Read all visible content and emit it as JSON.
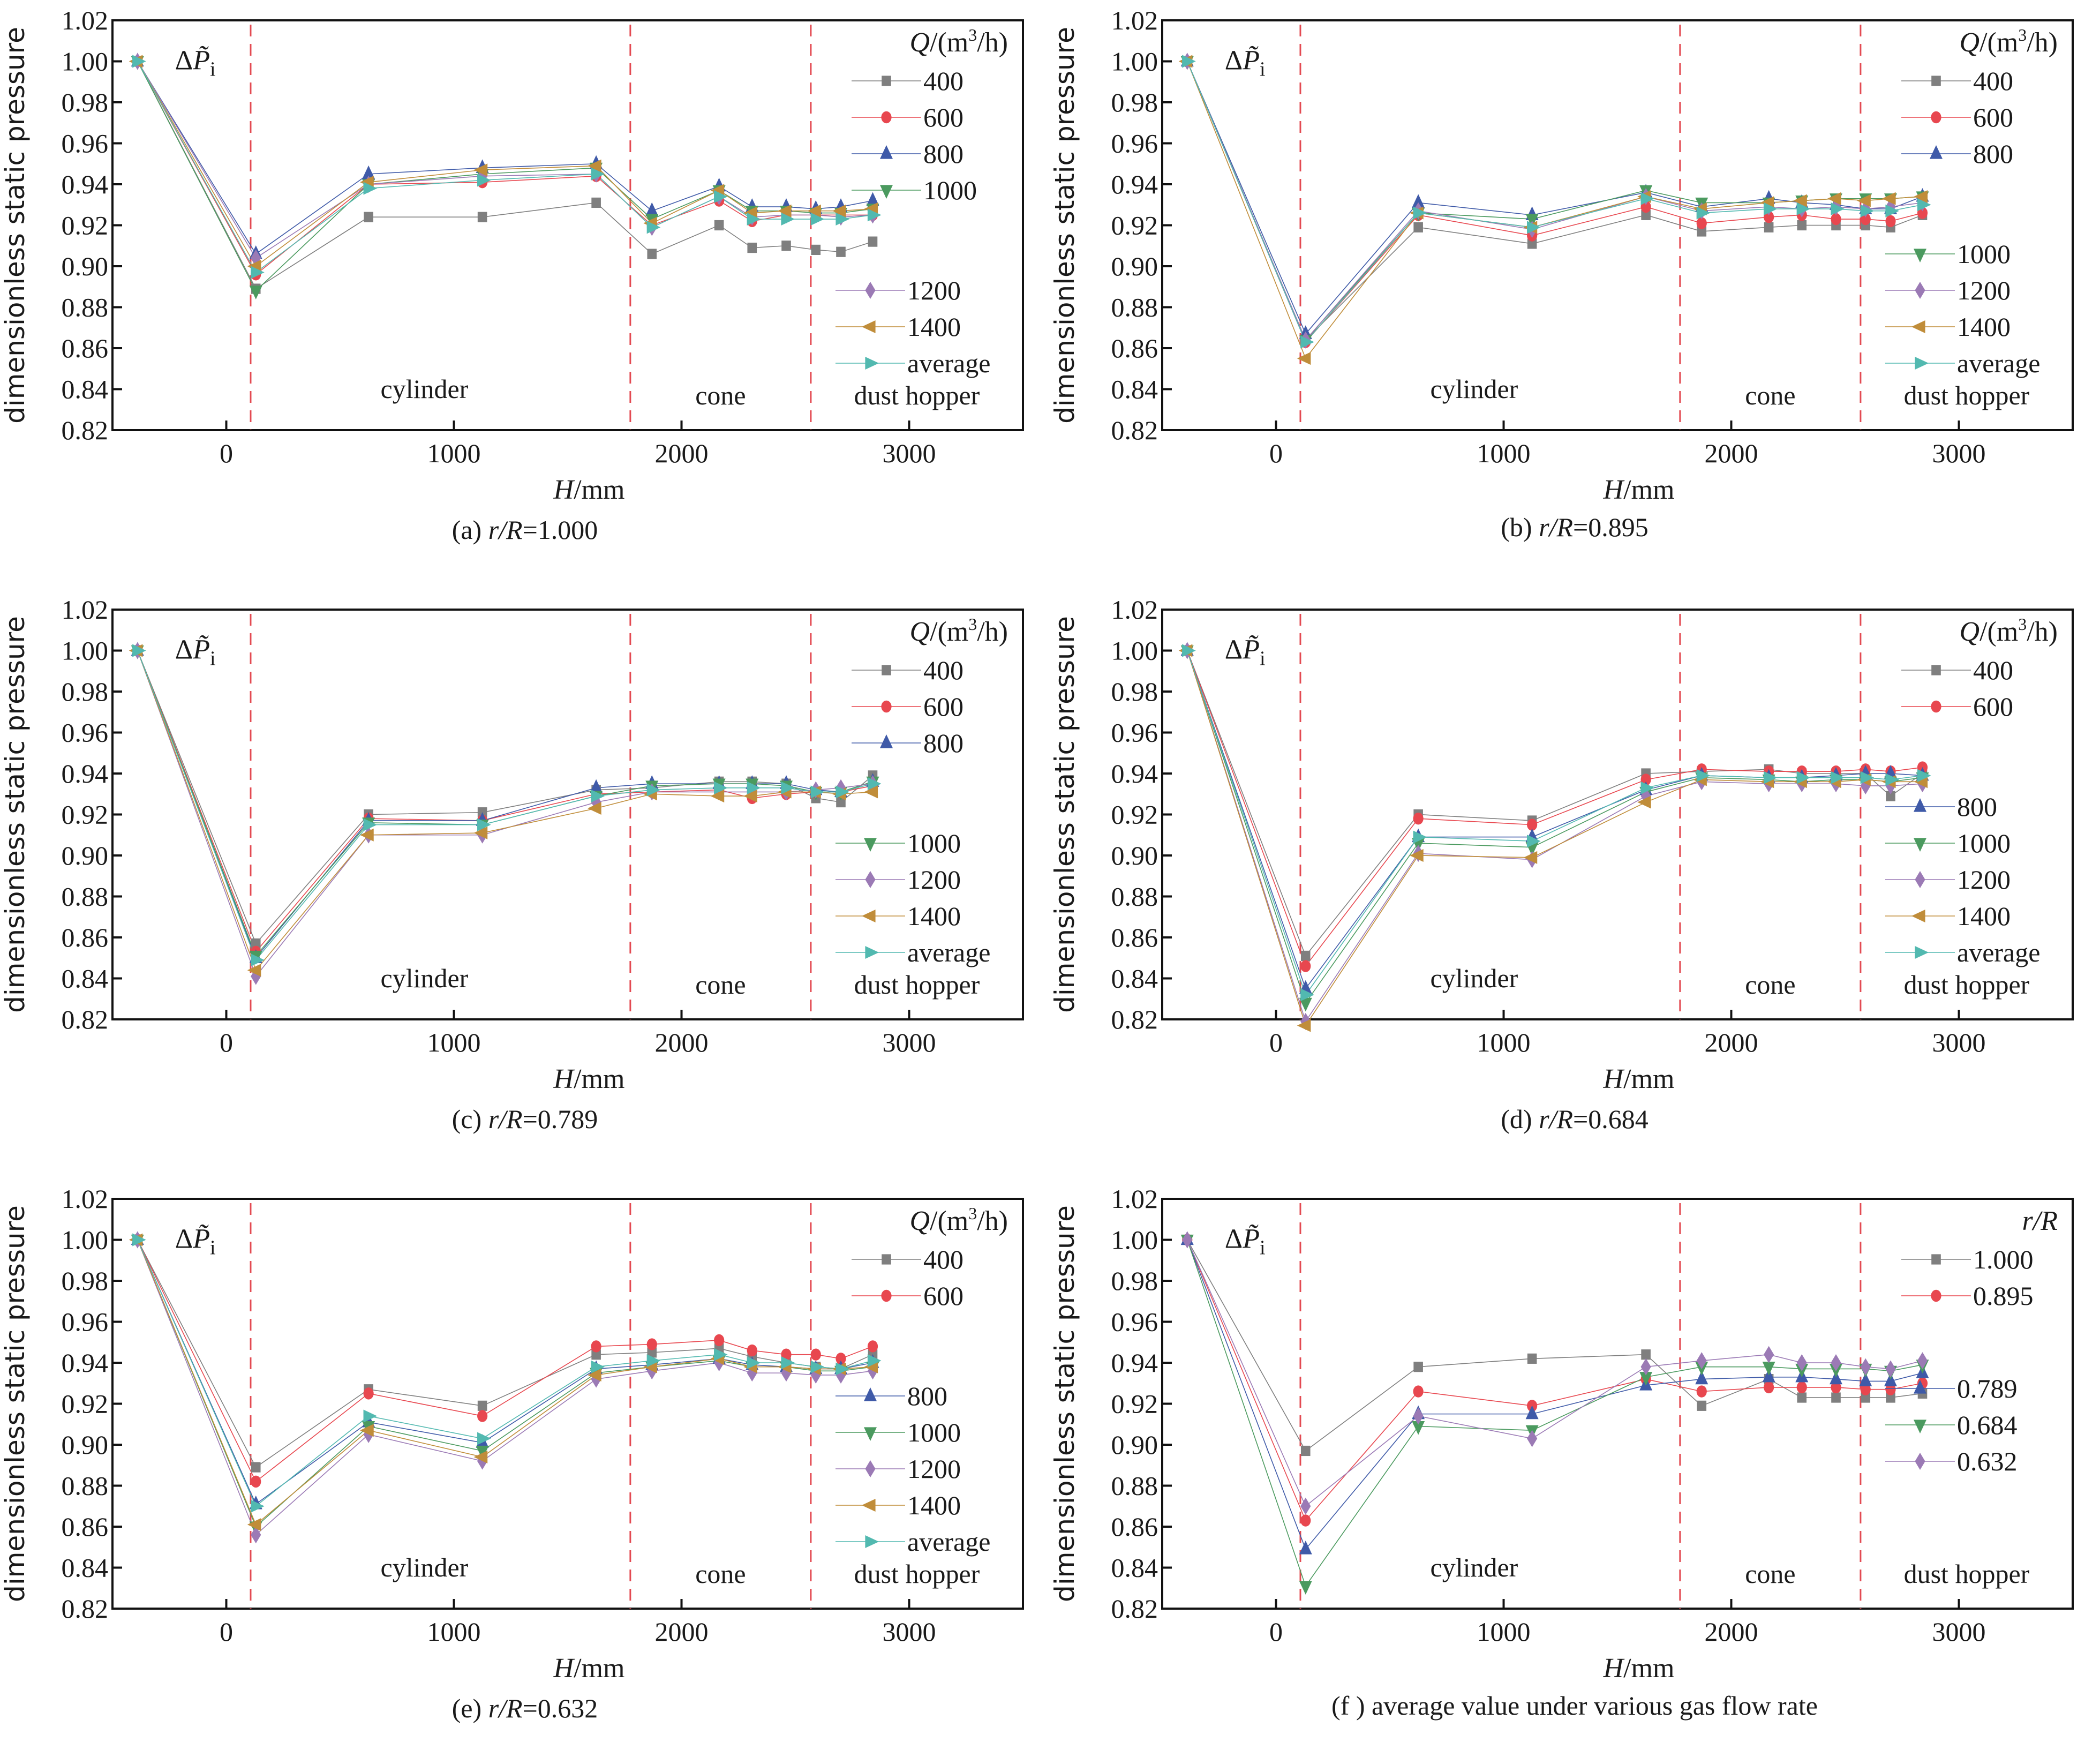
{
  "common": {
    "ylabel": "dimensionless static pressure",
    "xlabel_var": "H",
    "xlabel_unit": "mm",
    "xticks": [
      0,
      1000,
      2000,
      3000
    ],
    "yticks": [
      0.82,
      0.84,
      0.86,
      0.88,
      0.9,
      0.92,
      0.94,
      0.96,
      0.98,
      1.0,
      1.02
    ],
    "xlim": [
      -500,
      3500
    ],
    "ylim": [
      0.82,
      1.02
    ],
    "annotation": "ΔP̃i",
    "region_boundaries": [
      107,
      1775,
      2568
    ],
    "regions": [
      "cylinder",
      "cone",
      "dust hopper"
    ],
    "x": [
      -390,
      130,
      625,
      1125,
      1625,
      1870,
      2165,
      2310,
      2460,
      2590,
      2700,
      2840
    ],
    "colors": {
      "gray": "#7f7f7f",
      "red": "#e8474f",
      "blue": "#3f5aa8",
      "green": "#4b9a5f",
      "purple": "#9b7ab5",
      "gold": "#c08d3a",
      "teal": "#52b9b0",
      "divider": "#e34a52"
    }
  },
  "chart_data": [
    {
      "id": "a",
      "type": "line",
      "caption_prefix": "(a) ",
      "caption_var": "r/R",
      "caption_value": "=1.000",
      "legend_title": "Q/(m³/h)",
      "series": [
        {
          "name": "400",
          "marker": "square",
          "color": "gray",
          "values": [
            1.0,
            0.889,
            0.924,
            0.924,
            0.931,
            0.906,
            0.92,
            0.909,
            0.91,
            0.908,
            0.907,
            0.912
          ]
        },
        {
          "name": "600",
          "marker": "circle",
          "color": "red",
          "values": [
            1.0,
            0.896,
            0.94,
            0.941,
            0.944,
            0.92,
            0.932,
            0.922,
            0.925,
            0.925,
            0.925,
            0.925
          ]
        },
        {
          "name": "800",
          "marker": "triangle-up",
          "color": "blue",
          "values": [
            1.0,
            0.906,
            0.945,
            0.948,
            0.95,
            0.927,
            0.939,
            0.929,
            0.929,
            0.928,
            0.929,
            0.932
          ]
        },
        {
          "name": "1000",
          "marker": "triangle-down",
          "color": "green",
          "values": [
            1.0,
            0.888,
            0.94,
            0.945,
            0.948,
            0.923,
            0.937,
            0.927,
            0.927,
            0.926,
            0.926,
            0.928
          ]
        },
        {
          "name": "1200",
          "marker": "diamond",
          "color": "purple",
          "values": [
            1.0,
            0.904,
            0.94,
            0.944,
            0.945,
            0.919,
            0.934,
            0.924,
            0.925,
            0.925,
            0.924,
            0.925
          ]
        },
        {
          "name": "1400",
          "marker": "triangle-left",
          "color": "gold",
          "values": [
            1.0,
            0.9,
            0.941,
            0.947,
            0.949,
            0.921,
            0.937,
            0.926,
            0.927,
            0.927,
            0.927,
            0.928
          ]
        },
        {
          "name": "average",
          "marker": "triangle-right",
          "color": "teal",
          "values": [
            1.0,
            0.897,
            0.938,
            0.942,
            0.945,
            0.919,
            0.934,
            0.923,
            0.923,
            0.923,
            0.923,
            0.925
          ]
        }
      ],
      "legend_split_after": 4
    },
    {
      "id": "b",
      "type": "line",
      "caption_prefix": "(b) ",
      "caption_var": "r/R",
      "caption_value": "=0.895",
      "legend_title": "Q/(m³/h)",
      "series": [
        {
          "name": "400",
          "marker": "square",
          "color": "gray",
          "values": [
            1.0,
            0.864,
            0.919,
            0.911,
            0.925,
            0.917,
            0.919,
            0.92,
            0.92,
            0.92,
            0.919,
            0.925
          ]
        },
        {
          "name": "600",
          "marker": "circle",
          "color": "red",
          "values": [
            1.0,
            0.863,
            0.925,
            0.915,
            0.929,
            0.921,
            0.924,
            0.925,
            0.923,
            0.923,
            0.922,
            0.926
          ]
        },
        {
          "name": "800",
          "marker": "triangle-up",
          "color": "blue",
          "values": [
            1.0,
            0.867,
            0.931,
            0.925,
            0.936,
            0.929,
            0.933,
            0.931,
            0.93,
            0.928,
            0.928,
            0.934
          ]
        },
        {
          "name": "1000",
          "marker": "triangle-down",
          "color": "green",
          "values": [
            1.0,
            0.864,
            0.926,
            0.923,
            0.937,
            0.931,
            0.931,
            0.932,
            0.933,
            0.933,
            0.933,
            0.934
          ]
        },
        {
          "name": "1200",
          "marker": "diamond",
          "color": "purple",
          "values": [
            1.0,
            0.864,
            0.927,
            0.918,
            0.934,
            0.927,
            0.929,
            0.928,
            0.929,
            0.928,
            0.929,
            0.931
          ]
        },
        {
          "name": "1400",
          "marker": "triangle-left",
          "color": "gold",
          "values": [
            1.0,
            0.855,
            0.926,
            0.919,
            0.934,
            0.928,
            0.931,
            0.932,
            0.933,
            0.932,
            0.933,
            0.934
          ]
        },
        {
          "name": "average",
          "marker": "triangle-right",
          "color": "teal",
          "values": [
            1.0,
            0.863,
            0.926,
            0.919,
            0.933,
            0.926,
            0.928,
            0.928,
            0.928,
            0.927,
            0.927,
            0.93
          ]
        }
      ],
      "legend_split_after": 3
    },
    {
      "id": "c",
      "type": "line",
      "caption_prefix": "(c) ",
      "caption_var": "r/R",
      "caption_value": "=0.789",
      "legend_title": "Q/(m³/h)",
      "series": [
        {
          "name": "400",
          "marker": "square",
          "color": "gray",
          "values": [
            1.0,
            0.857,
            0.92,
            0.921,
            0.932,
            0.933,
            0.936,
            0.936,
            0.935,
            0.928,
            0.926,
            0.939
          ]
        },
        {
          "name": "600",
          "marker": "circle",
          "color": "red",
          "values": [
            1.0,
            0.853,
            0.918,
            0.917,
            0.93,
            0.931,
            0.932,
            0.928,
            0.93,
            0.931,
            0.931,
            0.934
          ]
        },
        {
          "name": "800",
          "marker": "triangle-up",
          "color": "blue",
          "values": [
            1.0,
            0.85,
            0.917,
            0.917,
            0.933,
            0.935,
            0.935,
            0.935,
            0.935,
            0.932,
            0.931,
            0.936
          ]
        },
        {
          "name": "1000",
          "marker": "triangle-down",
          "color": "green",
          "values": [
            1.0,
            0.851,
            0.916,
            0.915,
            0.929,
            0.934,
            0.935,
            0.935,
            0.934,
            0.931,
            0.931,
            0.936
          ]
        },
        {
          "name": "1200",
          "marker": "diamond",
          "color": "purple",
          "values": [
            1.0,
            0.841,
            0.91,
            0.91,
            0.926,
            0.931,
            0.931,
            0.931,
            0.931,
            0.932,
            0.933,
            0.935
          ]
        },
        {
          "name": "1400",
          "marker": "triangle-left",
          "color": "gold",
          "values": [
            1.0,
            0.844,
            0.91,
            0.911,
            0.923,
            0.93,
            0.929,
            0.929,
            0.931,
            0.931,
            0.93,
            0.931
          ]
        },
        {
          "name": "average",
          "marker": "triangle-right",
          "color": "teal",
          "values": [
            1.0,
            0.849,
            0.915,
            0.915,
            0.929,
            0.932,
            0.933,
            0.933,
            0.933,
            0.931,
            0.931,
            0.935
          ]
        }
      ],
      "legend_split_after": 3
    },
    {
      "id": "d",
      "type": "line",
      "caption_prefix": "(d) ",
      "caption_var": "r/R",
      "caption_value": "=0.684",
      "legend_title": "Q/(m³/h)",
      "series": [
        {
          "name": "400",
          "marker": "square",
          "color": "gray",
          "values": [
            1.0,
            0.851,
            0.92,
            0.917,
            0.94,
            0.941,
            0.942,
            0.94,
            0.94,
            0.94,
            0.929,
            0.94
          ]
        },
        {
          "name": "600",
          "marker": "circle",
          "color": "red",
          "values": [
            1.0,
            0.846,
            0.918,
            0.915,
            0.937,
            0.942,
            0.941,
            0.941,
            0.941,
            0.942,
            0.941,
            0.943
          ]
        },
        {
          "name": "800",
          "marker": "triangle-up",
          "color": "blue",
          "values": [
            1.0,
            0.835,
            0.909,
            0.909,
            0.932,
            0.939,
            0.938,
            0.938,
            0.939,
            0.94,
            0.94,
            0.939
          ]
        },
        {
          "name": "1000",
          "marker": "triangle-down",
          "color": "green",
          "values": [
            1.0,
            0.828,
            0.906,
            0.904,
            0.931,
            0.938,
            0.937,
            0.936,
            0.937,
            0.937,
            0.936,
            0.938
          ]
        },
        {
          "name": "1200",
          "marker": "diamond",
          "color": "purple",
          "values": [
            1.0,
            0.819,
            0.901,
            0.898,
            0.929,
            0.936,
            0.935,
            0.935,
            0.935,
            0.934,
            0.934,
            0.935
          ]
        },
        {
          "name": "1400",
          "marker": "triangle-left",
          "color": "gold",
          "values": [
            1.0,
            0.817,
            0.9,
            0.899,
            0.926,
            0.937,
            0.936,
            0.936,
            0.936,
            0.937,
            0.936,
            0.936
          ]
        },
        {
          "name": "average",
          "marker": "triangle-right",
          "color": "teal",
          "values": [
            1.0,
            0.832,
            0.909,
            0.907,
            0.933,
            0.939,
            0.938,
            0.938,
            0.938,
            0.938,
            0.937,
            0.939
          ]
        }
      ],
      "legend_split_after": 2
    },
    {
      "id": "e",
      "type": "line",
      "caption_prefix": "(e) ",
      "caption_var": "r/R",
      "caption_value": "=0.632",
      "legend_title": "Q/(m³/h)",
      "series": [
        {
          "name": "400",
          "marker": "square",
          "color": "gray",
          "values": [
            1.0,
            0.889,
            0.927,
            0.919,
            0.944,
            0.945,
            0.947,
            0.943,
            0.94,
            0.938,
            0.937,
            0.944
          ]
        },
        {
          "name": "600",
          "marker": "circle",
          "color": "red",
          "values": [
            1.0,
            0.882,
            0.925,
            0.914,
            0.948,
            0.949,
            0.951,
            0.946,
            0.944,
            0.944,
            0.942,
            0.948
          ]
        },
        {
          "name": "800",
          "marker": "triangle-up",
          "color": "blue",
          "values": [
            1.0,
            0.871,
            0.911,
            0.901,
            0.937,
            0.939,
            0.942,
            0.939,
            0.938,
            0.937,
            0.937,
            0.94
          ]
        },
        {
          "name": "1000",
          "marker": "triangle-down",
          "color": "green",
          "values": [
            1.0,
            0.86,
            0.909,
            0.897,
            0.935,
            0.938,
            0.941,
            0.938,
            0.938,
            0.936,
            0.936,
            0.938
          ]
        },
        {
          "name": "1200",
          "marker": "diamond",
          "color": "purple",
          "values": [
            1.0,
            0.856,
            0.905,
            0.892,
            0.932,
            0.936,
            0.94,
            0.935,
            0.935,
            0.934,
            0.934,
            0.936
          ]
        },
        {
          "name": "1400",
          "marker": "triangle-left",
          "color": "gold",
          "values": [
            1.0,
            0.861,
            0.907,
            0.894,
            0.934,
            0.938,
            0.942,
            0.938,
            0.938,
            0.937,
            0.937,
            0.938
          ]
        },
        {
          "name": "average",
          "marker": "triangle-right",
          "color": "teal",
          "values": [
            1.0,
            0.87,
            0.914,
            0.903,
            0.938,
            0.941,
            0.944,
            0.94,
            0.94,
            0.938,
            0.937,
            0.941
          ]
        }
      ],
      "legend_split_after": 2
    },
    {
      "id": "f",
      "type": "line",
      "caption_prefix": "(f )  ",
      "caption_var": "",
      "caption_value": "average  value under various gas flow rate",
      "legend_title": "r/R",
      "series": [
        {
          "name": "1.000",
          "marker": "square",
          "color": "gray",
          "values": [
            1.0,
            0.897,
            0.938,
            0.942,
            0.944,
            0.919,
            0.932,
            0.923,
            0.923,
            0.923,
            0.923,
            0.925
          ]
        },
        {
          "name": "0.895",
          "marker": "circle",
          "color": "red",
          "values": [
            1.0,
            0.863,
            0.926,
            0.919,
            0.932,
            0.926,
            0.928,
            0.928,
            0.928,
            0.927,
            0.927,
            0.93
          ]
        },
        {
          "name": "0.789",
          "marker": "triangle-up",
          "color": "blue",
          "values": [
            1.0,
            0.849,
            0.915,
            0.915,
            0.929,
            0.932,
            0.933,
            0.933,
            0.932,
            0.931,
            0.931,
            0.935
          ]
        },
        {
          "name": "0.684",
          "marker": "triangle-down",
          "color": "green",
          "values": [
            1.0,
            0.831,
            0.909,
            0.907,
            0.933,
            0.938,
            0.938,
            0.937,
            0.937,
            0.937,
            0.936,
            0.939
          ]
        },
        {
          "name": "0.632",
          "marker": "diamond",
          "color": "purple",
          "values": [
            1.0,
            0.87,
            0.914,
            0.903,
            0.938,
            0.941,
            0.944,
            0.94,
            0.94,
            0.938,
            0.937,
            0.941
          ]
        }
      ],
      "legend_split_after": 2
    }
  ]
}
